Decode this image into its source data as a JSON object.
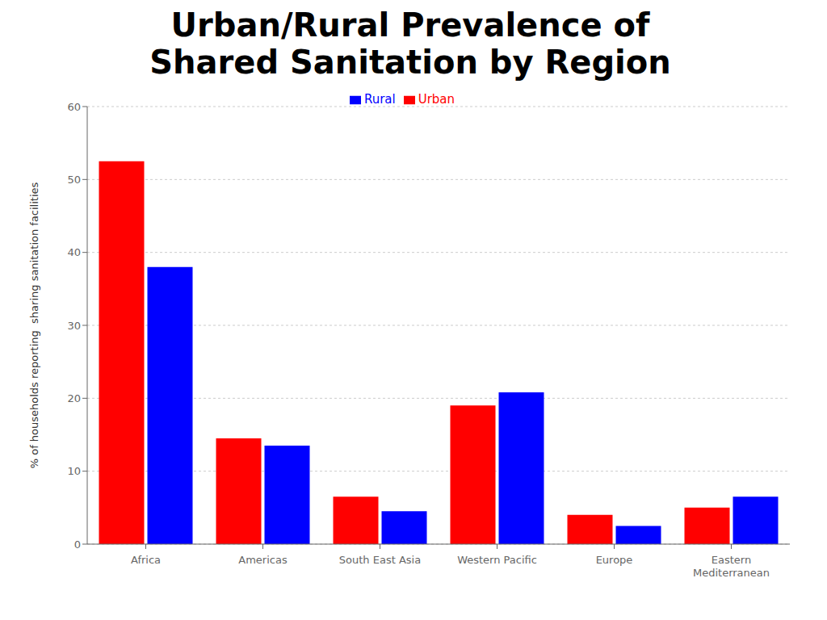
{
  "chart_data": {
    "type": "bar",
    "title": "Urban/Rural Prevalence of\nShared Sanitation by Region",
    "categories": [
      "Africa",
      "Americas",
      "South East Asia",
      "Western Pacific",
      "Europe",
      "Eastern\nMediterranean"
    ],
    "series": [
      {
        "name": "Urban",
        "color": "#FF0000",
        "values": [
          52.5,
          14.5,
          6.5,
          19.0,
          4.0,
          5.0
        ]
      },
      {
        "name": "Rural",
        "color": "#0000FF",
        "values": [
          38.0,
          13.5,
          4.5,
          20.8,
          2.5,
          6.5
        ]
      }
    ],
    "ylabel": "% of households reporting  sharing sanitation facilities",
    "ylim": [
      0,
      60
    ],
    "yticks": [
      0,
      10,
      20,
      30,
      40,
      50,
      60
    ],
    "grid": true,
    "legend": "top"
  }
}
